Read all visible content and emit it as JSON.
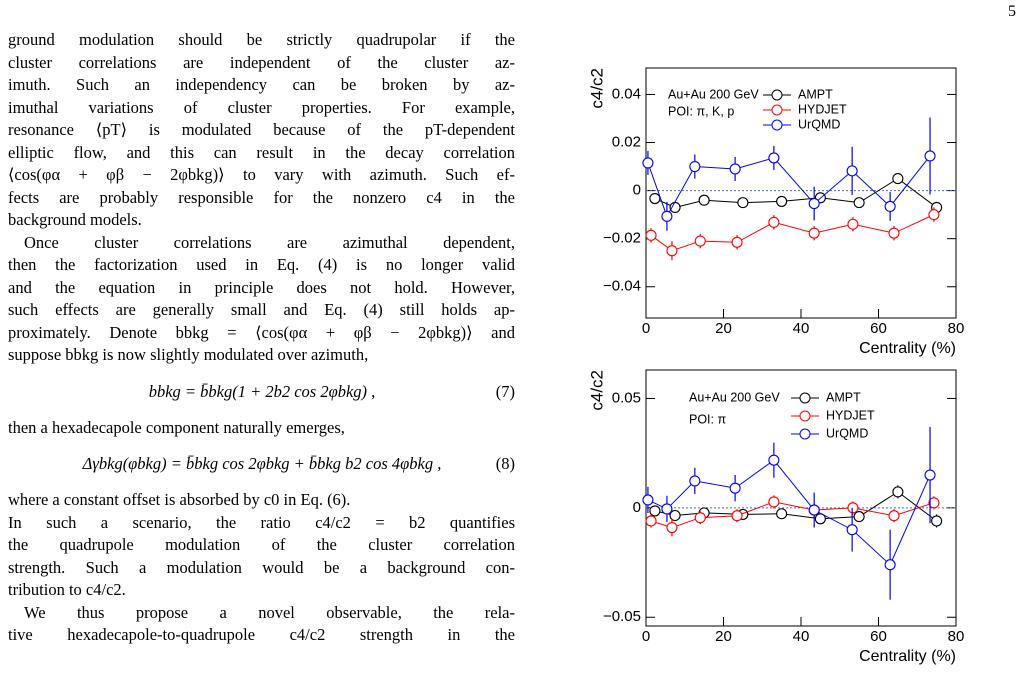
{
  "page_number": "5",
  "body": [
    {
      "text": "ground modulation should be strictly quadrupolar if the"
    },
    {
      "text": "cluster correlations are independent of the cluster az-"
    },
    {
      "text": "imuth.  Such an independency can be broken by az-"
    },
    {
      "text": "imuthal variations of cluster properties. For example,"
    },
    {
      "text": "resonance ⟨pT⟩ is modulated because of the pT-dependent"
    },
    {
      "text": "elliptic flow, and this can result in the decay correlation"
    },
    {
      "text": "⟨cos(φα + φβ − 2φbkg)⟩ to vary with azimuth. Such ef-"
    },
    {
      "text": "fects are probably responsible for the nonzero c4 in the"
    },
    {
      "text": "background models."
    },
    {
      "text": "Once cluster correlations are azimuthal dependent,"
    },
    {
      "text": "then the factorization used in Eq. (4) is no longer valid"
    },
    {
      "text": "and the equation in principle does not hold. However,"
    },
    {
      "text": "such effects are generally small and Eq. (4) still holds ap-"
    },
    {
      "text": "proximately. Denote bbkg = ⟨cos(φα + φβ − 2φbkg)⟩ and"
    },
    {
      "text": "suppose bbkg is now slightly modulated over azimuth,"
    },
    {
      "equation": "bbkg = b̄bkg(1 + 2b2 cos 2φbkg) ,",
      "number": "(7)"
    },
    {
      "text": "then a hexadecapole component naturally emerges,"
    },
    {
      "equation": "Δγbkg(φbkg) = b̄bkg cos 2φbkg + b̄bkg b2 cos 4φbkg ,",
      "number": "(8)"
    },
    {
      "text": "where a constant offset is absorbed by c0 in Eq. (6)."
    },
    {
      "text": "In such a scenario, the ratio c4/c2 = b2 quantifies"
    },
    {
      "text": "the quadrupole modulation of the cluster correlation"
    },
    {
      "text": "strength. Such a modulation would be a background con-"
    },
    {
      "text": "tribution to c4/c2."
    },
    {
      "text": "We thus propose a novel observable, the rela-"
    },
    {
      "text": "tive hexadecapole-to-quadrupole c4/c2 strength in the"
    }
  ],
  "chart_data": [
    {
      "type": "line",
      "ylabel": "c4/c2",
      "xlabel": "Centrality (%)",
      "annotations": [
        "Au+Au 200 GeV",
        "POI: π, K, p"
      ],
      "xlim": [
        0,
        80
      ],
      "xticks": [
        0,
        20,
        40,
        60,
        80
      ],
      "ylim": [
        -0.053,
        0.051
      ],
      "yticks": [
        {
          "value": -0.04,
          "label": "−0.04"
        },
        {
          "value": -0.02,
          "label": "−0.02"
        },
        0,
        0.02,
        0.04
      ],
      "series": [
        {
          "name": "AMPT",
          "color": "#000000",
          "x": [
            2.3,
            7.5,
            15,
            25,
            35,
            45,
            55,
            65,
            75
          ],
          "values": [
            -0.0033,
            -0.007,
            -0.004,
            -0.005,
            -0.0045,
            -0.003,
            -0.005,
            0.005,
            -0.007
          ],
          "errors": [
            0.002,
            0.002,
            0.0015,
            0.0015,
            0.0015,
            0.0015,
            0.002,
            0.002,
            0.002
          ]
        },
        {
          "name": "HYDJET",
          "color": "#ff0000",
          "x": [
            1.3,
            6.7,
            14,
            23.5,
            33,
            43.4,
            53.4,
            64,
            74.3
          ],
          "values": [
            -0.0186,
            -0.025,
            -0.021,
            -0.0215,
            -0.0132,
            -0.0177,
            -0.014,
            -0.0177,
            -0.01
          ],
          "errors": [
            0.003,
            0.004,
            0.003,
            0.003,
            0.003,
            0.003,
            0.003,
            0.003,
            0.003
          ]
        },
        {
          "name": "UrQMD",
          "color": "#0000ff",
          "x": [
            0.5,
            5.4,
            12.6,
            23,
            33,
            43.4,
            53.2,
            63,
            73.3
          ],
          "values": [
            0.0115,
            -0.0107,
            0.01,
            0.009,
            0.0136,
            -0.0054,
            0.0082,
            -0.0066,
            0.0144
          ],
          "errors": [
            0.005,
            0.006,
            0.005,
            0.005,
            0.005,
            0.007,
            0.01,
            0.006,
            0.016
          ]
        }
      ]
    },
    {
      "type": "line",
      "ylabel": "c4/c2",
      "xlabel": "Centrality (%)",
      "annotations": [
        "Au+Au 200 GeV",
        "POI: π"
      ],
      "xlim": [
        0,
        80
      ],
      "xticks": [
        0,
        20,
        40,
        60,
        80
      ],
      "ylim": [
        -0.054,
        0.063
      ],
      "yticks": [
        {
          "value": -0.05,
          "label": "−0.05"
        },
        0,
        0.05
      ],
      "series": [
        {
          "name": "AMPT",
          "color": "#000000",
          "x": [
            2.3,
            7.5,
            15,
            25,
            35,
            45,
            55,
            65,
            75
          ],
          "values": [
            -0.0014,
            -0.0035,
            -0.0023,
            -0.003,
            -0.0027,
            -0.005,
            -0.004,
            0.0073,
            -0.006
          ],
          "errors": [
            0.002,
            0.002,
            0.002,
            0.002,
            0.002,
            0.002,
            0.002,
            0.003,
            0.003
          ]
        },
        {
          "name": "HYDJET",
          "color": "#ff0000",
          "x": [
            1.3,
            6.7,
            14,
            23.5,
            33,
            43.4,
            53.4,
            64,
            74.3
          ],
          "values": [
            -0.006,
            -0.009,
            -0.0045,
            -0.0036,
            0.0027,
            -0.001,
            0,
            -0.0036,
            0.0023
          ],
          "errors": [
            0.003,
            0.004,
            0.003,
            0.003,
            0.003,
            0.003,
            0.003,
            0.003,
            0.003
          ]
        },
        {
          "name": "UrQMD",
          "color": "#0000ff",
          "x": [
            0.5,
            5.4,
            12.6,
            23,
            33,
            43.4,
            53.2,
            63,
            73.3
          ],
          "values": [
            0.0036,
            -0.0005,
            0.0123,
            0.009,
            0.0218,
            -0.001,
            -0.01,
            -0.026,
            0.015
          ],
          "errors": [
            0.006,
            0.006,
            0.006,
            0.006,
            0.008,
            0.008,
            0.01,
            0.016,
            0.022
          ]
        }
      ]
    }
  ]
}
